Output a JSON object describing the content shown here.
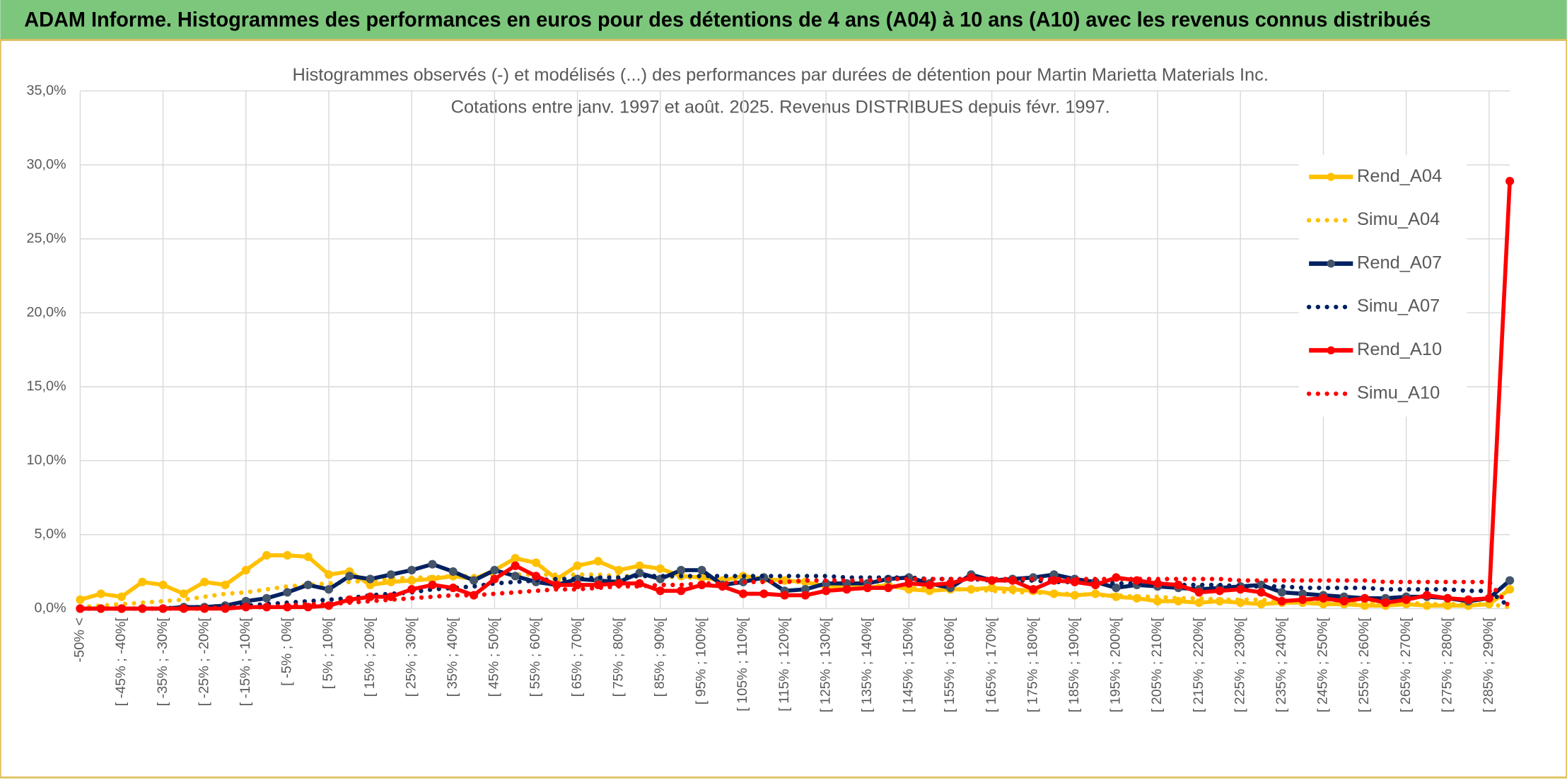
{
  "chart_data": {
    "type": "line",
    "title": "ADAM Informe. Histogrammes des performances en euros pour des détentions de 4 ans (A04) à 10 ans (A10) avec les revenus connus distribués",
    "subtitle": [
      "Histogrammes observés (-) et modélisés (...) des performances par durées de détention pour Martin Marietta Materials Inc.",
      "Cotations entre janv. 1997 et août. 2025. Revenus DISTRIBUES depuis févr. 1997."
    ],
    "categories": [
      "-50% <",
      null,
      "[ -45% ; -40%[",
      null,
      "[ -35% ; -30%[",
      null,
      "[ -25% ; -20%[",
      null,
      "[ -15% ; -10%[",
      null,
      "[ -5% ; 0%[",
      null,
      "[ 5% ; 10%[",
      null,
      "[ 15% ; 20%[",
      null,
      "[ 25% ; 30%[",
      null,
      "[ 35% ; 40%[",
      null,
      "[ 45% ; 50%[",
      null,
      "[ 55% ; 60%[",
      null,
      "[ 65% ; 70%[",
      null,
      "[ 75% ; 80%[",
      null,
      "[ 85% ; 90%[",
      null,
      "[ 95% ; 100%[",
      null,
      "[ 105% ; 110%[",
      null,
      "[ 115% ; 120%[",
      null,
      "[ 125% ; 130%[",
      null,
      "[ 135% ; 140%[",
      null,
      "[ 145% ; 150%[",
      null,
      "[ 155% ; 160%[",
      null,
      "[ 165% ; 170%[",
      null,
      "[ 175% ; 180%[",
      null,
      "[ 185% ; 190%[",
      null,
      "[ 195% ; 200%[",
      null,
      "[ 205% ; 210%[",
      null,
      "[ 215% ; 220%[",
      null,
      "[ 225% ; 230%[",
      null,
      "[ 235% ; 240%[",
      null,
      "[ 245% ; 250%[",
      null,
      "[ 255% ; 260%[",
      null,
      "[ 265% ; 270%[",
      null,
      "[ 275% ; 280%[",
      null,
      "[ 285% ; 290%[",
      null
    ],
    "ylim": [
      0,
      35
    ],
    "yticks": [
      {
        "value": 0,
        "label": "0,0%"
      },
      {
        "value": 5,
        "label": "5,0%"
      },
      {
        "value": 10,
        "label": "10,0%"
      },
      {
        "value": 15,
        "label": "15,0%"
      },
      {
        "value": 20,
        "label": "20,0%"
      },
      {
        "value": 25,
        "label": "25,0%"
      },
      {
        "value": 30,
        "label": "30,0%"
      },
      {
        "value": 35,
        "label": "35,0%"
      }
    ],
    "grid": true,
    "legend": "right",
    "series": [
      {
        "name": "Rend_A04",
        "color": "#ffc000",
        "style": "solid",
        "marker_color": "#ffc000",
        "values": [
          0.6,
          1.0,
          0.8,
          1.8,
          1.6,
          1.0,
          1.8,
          1.6,
          2.6,
          3.6,
          3.6,
          3.5,
          2.3,
          2.5,
          1.6,
          1.8,
          1.9,
          2.0,
          2.2,
          2.0,
          2.6,
          3.4,
          3.1,
          2.0,
          2.9,
          3.2,
          2.6,
          2.9,
          2.7,
          2.2,
          2.1,
          1.9,
          2.2,
          2.0,
          1.9,
          1.8,
          1.5,
          1.5,
          1.4,
          1.6,
          1.3,
          1.2,
          1.3,
          1.3,
          1.4,
          1.3,
          1.2,
          1.0,
          0.9,
          1.0,
          0.8,
          0.7,
          0.5,
          0.5,
          0.4,
          0.5,
          0.4,
          0.3,
          0.4,
          0.4,
          0.3,
          0.3,
          0.2,
          0.2,
          0.3,
          0.2,
          0.2,
          0.2,
          0.3,
          1.3
        ]
      },
      {
        "name": "Simu_A04",
        "color": "#ffc000",
        "style": "dotted",
        "values": [
          0.1,
          0.2,
          0.3,
          0.4,
          0.5,
          0.6,
          0.8,
          1.0,
          1.1,
          1.3,
          1.5,
          1.6,
          1.7,
          1.8,
          1.9,
          2.0,
          2.1,
          2.1,
          2.2,
          2.2,
          2.3,
          2.3,
          2.3,
          2.3,
          2.3,
          2.3,
          2.2,
          2.2,
          2.2,
          2.1,
          2.1,
          2.0,
          2.0,
          1.9,
          1.8,
          1.8,
          1.7,
          1.6,
          1.6,
          1.5,
          1.4,
          1.4,
          1.3,
          1.3,
          1.2,
          1.1,
          1.1,
          1.0,
          1.0,
          0.9,
          0.9,
          0.8,
          0.8,
          0.7,
          0.7,
          0.6,
          0.6,
          0.6,
          0.5,
          0.5,
          0.5,
          0.4,
          0.4,
          0.4,
          0.4,
          0.3,
          0.3,
          0.3,
          0.3,
          0.1
        ]
      },
      {
        "name": "Rend_A07",
        "color": "#002060",
        "style": "solid",
        "marker_color": "#44546a",
        "values": [
          0,
          0,
          0,
          0,
          0,
          0.1,
          0.1,
          0.2,
          0.5,
          0.7,
          1.1,
          1.6,
          1.3,
          2.2,
          2.0,
          2.3,
          2.6,
          3.0,
          2.5,
          1.9,
          2.6,
          2.2,
          1.8,
          1.6,
          2.0,
          1.9,
          1.8,
          2.4,
          2.0,
          2.6,
          2.6,
          1.6,
          1.8,
          2.1,
          1.2,
          1.3,
          1.7,
          1.7,
          1.7,
          2.0,
          2.1,
          1.7,
          1.4,
          2.3,
          1.9,
          2.0,
          2.1,
          2.3,
          2.0,
          1.8,
          1.4,
          1.6,
          1.5,
          1.4,
          1.3,
          1.4,
          1.5,
          1.6,
          1.1,
          1.0,
          0.9,
          0.8,
          0.7,
          0.7,
          0.8,
          0.8,
          0.7,
          0.5,
          0.7,
          1.9
        ]
      },
      {
        "name": "Simu_A07",
        "color": "#002060",
        "style": "dotted",
        "values": [
          0,
          0,
          0,
          0,
          0,
          0.1,
          0.1,
          0.2,
          0.2,
          0.3,
          0.4,
          0.5,
          0.6,
          0.7,
          0.9,
          1.0,
          1.1,
          1.3,
          1.4,
          1.5,
          1.7,
          1.8,
          1.9,
          2.0,
          2.0,
          2.1,
          2.1,
          2.2,
          2.2,
          2.2,
          2.2,
          2.2,
          2.2,
          2.2,
          2.2,
          2.2,
          2.2,
          2.1,
          2.1,
          2.1,
          2.1,
          2.0,
          2.0,
          2.0,
          1.9,
          1.9,
          1.9,
          1.8,
          1.8,
          1.8,
          1.7,
          1.7,
          1.7,
          1.6,
          1.6,
          1.6,
          1.5,
          1.5,
          1.5,
          1.4,
          1.4,
          1.4,
          1.4,
          1.3,
          1.3,
          1.3,
          1.3,
          1.2,
          1.2,
          0.1
        ]
      },
      {
        "name": "Rend_A10",
        "color": "#ff0000",
        "style": "solid",
        "marker_color": "#ff0000",
        "values": [
          0,
          0,
          0,
          0,
          0,
          0,
          0,
          0,
          0.1,
          0.1,
          0.1,
          0.1,
          0.2,
          0.6,
          0.8,
          0.8,
          1.3,
          1.6,
          1.4,
          0.9,
          2.0,
          2.9,
          2.2,
          1.6,
          1.6,
          1.6,
          1.7,
          1.7,
          1.2,
          1.2,
          1.6,
          1.5,
          1.0,
          1.0,
          0.9,
          0.9,
          1.2,
          1.3,
          1.4,
          1.4,
          1.7,
          1.6,
          1.7,
          2.1,
          1.9,
          1.9,
          1.3,
          1.9,
          1.8,
          1.6,
          2.1,
          1.9,
          1.7,
          1.6,
          1.1,
          1.2,
          1.3,
          1.1,
          0.5,
          0.6,
          0.7,
          0.5,
          0.7,
          0.4,
          0.6,
          0.9,
          0.7,
          0.6,
          0.7,
          28.9
        ]
      },
      {
        "name": "Simu_A10",
        "color": "#ff0000",
        "style": "dotted",
        "values": [
          0,
          0,
          0,
          0,
          0,
          0,
          0,
          0.1,
          0.1,
          0.1,
          0.2,
          0.3,
          0.3,
          0.4,
          0.5,
          0.6,
          0.7,
          0.8,
          0.9,
          0.9,
          1.0,
          1.1,
          1.2,
          1.3,
          1.3,
          1.4,
          1.5,
          1.5,
          1.6,
          1.6,
          1.7,
          1.7,
          1.8,
          1.8,
          1.8,
          1.9,
          1.9,
          1.9,
          1.9,
          2.0,
          2.0,
          2.0,
          2.0,
          2.0,
          2.0,
          2.0,
          2.0,
          2.0,
          2.0,
          2.0,
          2.0,
          2.0,
          2.0,
          2.0,
          2.0,
          2.0,
          1.9,
          1.9,
          1.9,
          1.9,
          1.9,
          1.9,
          1.9,
          1.8,
          1.8,
          1.8,
          1.8,
          1.8,
          1.8,
          0.1
        ]
      }
    ]
  }
}
